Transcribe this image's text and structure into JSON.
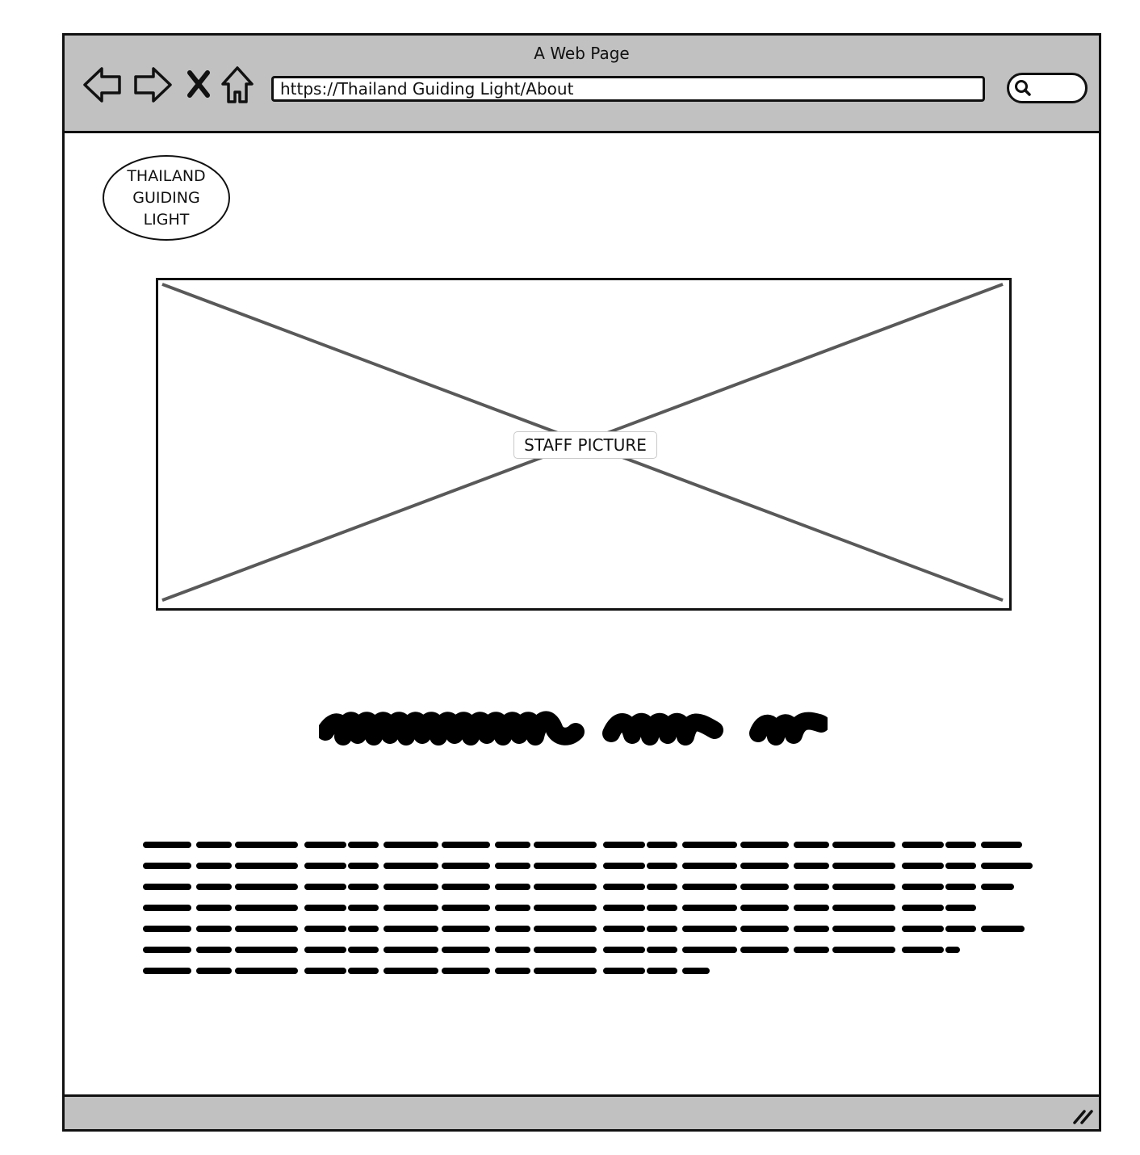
{
  "window": {
    "title": "A Web Page"
  },
  "toolbar": {
    "back_icon": "back-arrow-icon",
    "forward_icon": "forward-arrow-icon",
    "stop_icon": "close-icon",
    "home_icon": "home-icon",
    "url": "https://Thailand Guiding Light/About",
    "search_icon": "search-icon"
  },
  "page": {
    "logo_text": "THAILAND\nGUIDING\nLIGHT",
    "image_caption": "STAFF PICTURE"
  },
  "colors": {
    "chrome": "#c1c1c1",
    "stroke": "#111111",
    "image_cross": "#595959"
  }
}
